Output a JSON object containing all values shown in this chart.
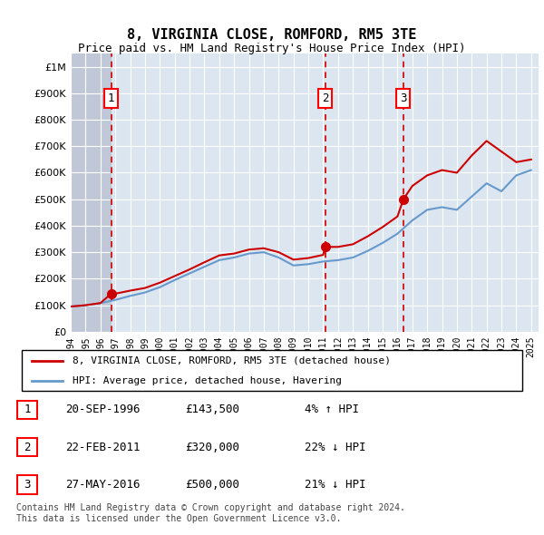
{
  "title": "8, VIRGINIA CLOSE, ROMFORD, RM5 3TE",
  "subtitle": "Price paid vs. HM Land Registry's House Price Index (HPI)",
  "ylabel_ticks": [
    "£0",
    "£100K",
    "£200K",
    "£300K",
    "£400K",
    "£500K",
    "£600K",
    "£700K",
    "£800K",
    "£900K",
    "£1M"
  ],
  "ytick_values": [
    0,
    100000,
    200000,
    300000,
    400000,
    500000,
    600000,
    700000,
    800000,
    900000,
    1000000
  ],
  "ylim": [
    0,
    1050000
  ],
  "xlim_start": 1994.0,
  "xlim_end": 2025.5,
  "background_color": "#ffffff",
  "plot_bg_color": "#dce6f0",
  "grid_color": "#ffffff",
  "hatch_color": "#c0c8d8",
  "sale_dates": [
    1996.72,
    2011.14,
    2016.4
  ],
  "sale_prices": [
    143500,
    320000,
    500000
  ],
  "sale_labels": [
    "1",
    "2",
    "3"
  ],
  "sale_dot_color": "#cc0000",
  "sale_line_color": "#cc0000",
  "hpi_line_color": "#6699cc",
  "vline_color": "#cc0000",
  "legend_label_red": "8, VIRGINIA CLOSE, ROMFORD, RM5 3TE (detached house)",
  "legend_label_blue": "HPI: Average price, detached house, Havering",
  "table_rows": [
    {
      "num": "1",
      "date": "20-SEP-1996",
      "price": "£143,500",
      "change": "4% ↑ HPI"
    },
    {
      "num": "2",
      "date": "22-FEB-2011",
      "price": "£320,000",
      "change": "22% ↓ HPI"
    },
    {
      "num": "3",
      "date": "27-MAY-2016",
      "price": "£500,000",
      "change": "21% ↓ HPI"
    }
  ],
  "footnote": "Contains HM Land Registry data © Crown copyright and database right 2024.\nThis data is licensed under the Open Government Licence v3.0.",
  "xtick_years": [
    1994,
    1995,
    1996,
    1997,
    1998,
    1999,
    2000,
    2001,
    2002,
    2003,
    2004,
    2005,
    2006,
    2007,
    2008,
    2009,
    2010,
    2011,
    2012,
    2013,
    2014,
    2015,
    2016,
    2017,
    2018,
    2019,
    2020,
    2021,
    2022,
    2023,
    2024,
    2025
  ],
  "hpi_years": [
    1994,
    1995,
    1996,
    1997,
    1998,
    1999,
    2000,
    2001,
    2002,
    2003,
    2004,
    2005,
    2006,
    2007,
    2008,
    2009,
    2010,
    2011,
    2012,
    2013,
    2014,
    2015,
    2016,
    2017,
    2018,
    2019,
    2020,
    2021,
    2022,
    2023,
    2024,
    2025
  ],
  "hpi_values": [
    95000,
    100000,
    108000,
    120000,
    135000,
    148000,
    168000,
    195000,
    220000,
    245000,
    270000,
    280000,
    295000,
    300000,
    280000,
    250000,
    255000,
    265000,
    270000,
    280000,
    305000,
    335000,
    370000,
    420000,
    460000,
    470000,
    460000,
    510000,
    560000,
    530000,
    590000,
    610000
  ],
  "red_line_years": [
    1994,
    1995,
    1996,
    1996.72,
    1997,
    1998,
    1999,
    2000,
    2001,
    2002,
    2003,
    2004,
    2005,
    2006,
    2007,
    2008,
    2009,
    2010,
    2011,
    2011.14,
    2012,
    2013,
    2014,
    2015,
    2016,
    2016.4,
    2017,
    2018,
    2019,
    2020,
    2021,
    2022,
    2023,
    2024,
    2025
  ],
  "red_line_values": [
    95000,
    100000,
    108000,
    143500,
    143500,
    155000,
    165000,
    185000,
    210000,
    235000,
    262000,
    288000,
    295000,
    310000,
    315000,
    300000,
    272000,
    278000,
    290000,
    320000,
    320000,
    330000,
    360000,
    395000,
    435000,
    500000,
    550000,
    590000,
    610000,
    600000,
    665000,
    720000,
    680000,
    640000,
    650000
  ]
}
